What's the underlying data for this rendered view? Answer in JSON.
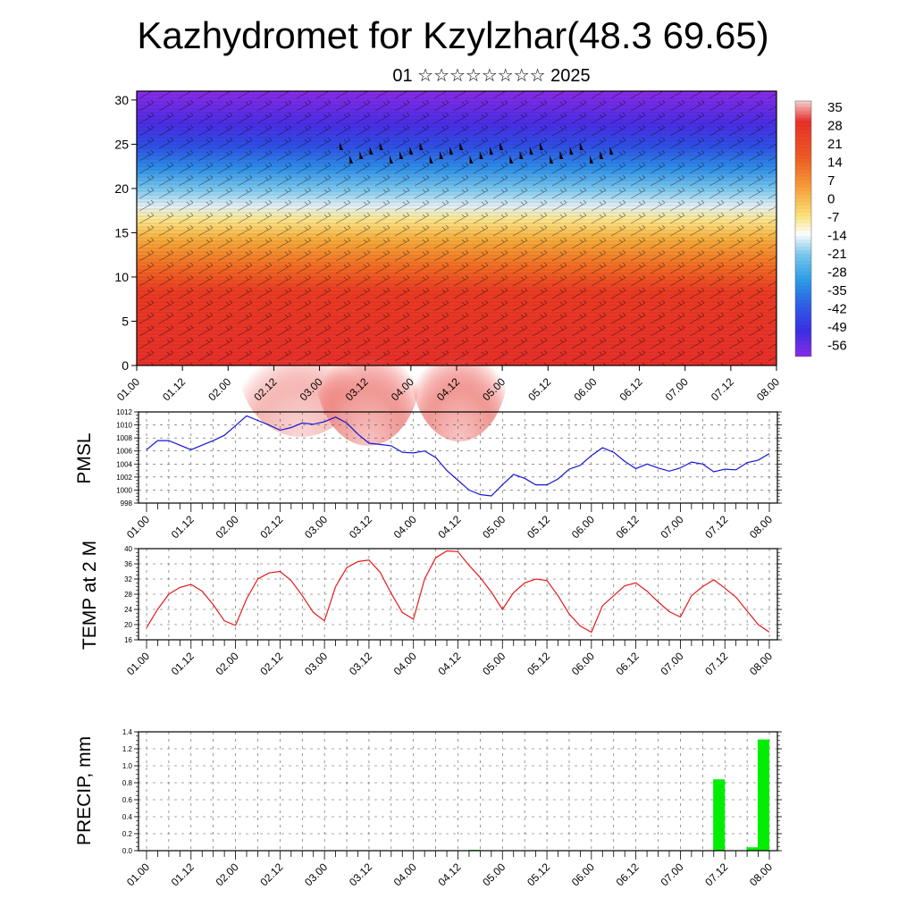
{
  "header": {
    "title": "Kazhydromet for Kzylzhar(48.3 69.65)",
    "subtitle": "01 ☆☆☆☆☆☆☆☆ 2025"
  },
  "chart_data": [
    {
      "type": "heatmap",
      "panel": "cross-section",
      "ylim": [
        0,
        31
      ],
      "yticks": [
        0,
        5,
        10,
        15,
        20,
        25,
        30
      ],
      "xtick_labels": [
        "01.00",
        "01.12",
        "02.00",
        "02.12",
        "03.00",
        "03.12",
        "04.00",
        "04.12",
        "05.00",
        "05.12",
        "06.00",
        "06.12",
        "07.00",
        "07.12",
        "08.00"
      ],
      "colorbar_labels": [
        "35",
        "28",
        "21",
        "14",
        "7",
        "0",
        "-7",
        "-14",
        "-21",
        "-28",
        "-35",
        "-42",
        "-49",
        "-56"
      ],
      "colorbar_colors": [
        "#f5d0d0",
        "#e8302a",
        "#f06a24",
        "#f7b040",
        "#fde37a",
        "#ffffff",
        "#79c9ef",
        "#2c9de8",
        "#2f5ee6",
        "#3a2fe4",
        "#8a2be8"
      ],
      "overlay": "wind barbs",
      "grid": false
    },
    {
      "type": "line",
      "panel": "pmsl",
      "ylabel": "PMSL",
      "ylim": [
        998,
        1012
      ],
      "yticks": [
        998,
        1000,
        1002,
        1004,
        1006,
        1008,
        1010,
        1012
      ],
      "xtick_labels": [
        "01.00",
        "01.12",
        "02.00",
        "02.12",
        "03.00",
        "03.12",
        "04.00",
        "04.12",
        "05.00",
        "05.12",
        "06.00",
        "06.12",
        "07.00",
        "07.12",
        "08.00"
      ],
      "x_hours": [
        0,
        3,
        6,
        9,
        12,
        15,
        18,
        21,
        24,
        27,
        30,
        33,
        36,
        39,
        42,
        45,
        48,
        51,
        54,
        57,
        60,
        63,
        66,
        69,
        72,
        75,
        78,
        81,
        84,
        87,
        90,
        93,
        96,
        99,
        102,
        105,
        108,
        111,
        114,
        117,
        120,
        123,
        126,
        129,
        132,
        135,
        138,
        141,
        144,
        147,
        150,
        153,
        156,
        159,
        162,
        165,
        168
      ],
      "series": [
        {
          "color": "#1515d6",
          "values": [
            1006.2,
            1007.6,
            1007.6,
            1006.9,
            1006.2,
            1006.9,
            1007.6,
            1008.4,
            1009.9,
            1011.4,
            1010.7,
            1010.0,
            1009.2,
            1009.6,
            1010.3,
            1010.1,
            1010.5,
            1011.2,
            1010.3,
            1008.6,
            1007.2,
            1007.0,
            1006.8,
            1005.8,
            1005.7,
            1006.0,
            1005.0,
            1003.0,
            1001.5,
            1000.0,
            999.3,
            999.1,
            1000.8,
            1002.4,
            1001.8,
            1000.8,
            1000.8,
            1001.7,
            1003.2,
            1003.8,
            1005.3,
            1006.5,
            1005.8,
            1004.4,
            1003.3,
            1004.0,
            1003.4,
            1002.9,
            1003.4,
            1004.3,
            1004.0,
            1002.8,
            1003.2,
            1003.1,
            1004.2,
            1004.6,
            1005.6
          ]
        }
      ],
      "grid": true
    },
    {
      "type": "line",
      "panel": "temp2m",
      "ylabel": "TEMP at 2 M",
      "ylim": [
        16,
        40
      ],
      "yticks": [
        16,
        20,
        24,
        28,
        32,
        36,
        40
      ],
      "xtick_labels": [
        "01.00",
        "01.12",
        "02.00",
        "02.12",
        "03.00",
        "03.12",
        "04.00",
        "04.12",
        "05.00",
        "05.12",
        "06.00",
        "06.12",
        "07.00",
        "07.12",
        "08.00"
      ],
      "x_hours": [
        0,
        3,
        6,
        9,
        12,
        15,
        18,
        21,
        24,
        27,
        30,
        33,
        36,
        39,
        42,
        45,
        48,
        51,
        54,
        57,
        60,
        63,
        66,
        69,
        72,
        75,
        78,
        81,
        84,
        87,
        90,
        93,
        96,
        99,
        102,
        105,
        108,
        111,
        114,
        117,
        120,
        123,
        126,
        129,
        132,
        135,
        138,
        141,
        144,
        147,
        150,
        153,
        156,
        159,
        162,
        165,
        168
      ],
      "series": [
        {
          "color": "#e41a1a",
          "values": [
            19.2,
            24.0,
            28.0,
            29.8,
            30.6,
            28.8,
            25.2,
            21.0,
            19.8,
            26.8,
            32.0,
            33.6,
            34.0,
            31.6,
            27.6,
            23.2,
            21.0,
            30.0,
            35.0,
            36.6,
            37.0,
            33.8,
            28.2,
            23.2,
            21.4,
            32.0,
            37.6,
            39.4,
            39.2,
            35.6,
            32.4,
            28.6,
            24.0,
            28.4,
            31.0,
            32.0,
            31.6,
            27.6,
            22.8,
            19.6,
            18.0,
            25.0,
            27.6,
            30.2,
            31.0,
            28.8,
            26.0,
            23.4,
            22.0,
            27.6,
            30.0,
            31.8,
            29.6,
            27.2,
            23.6,
            20.0,
            18.0
          ]
        }
      ],
      "grid": true
    },
    {
      "type": "bar",
      "panel": "precip",
      "ylabel": "PRECIP, mm",
      "ylim": [
        0,
        1.4
      ],
      "yticks": [
        "0.0",
        "0.2",
        "0.4",
        "0.6",
        "0.8",
        "1.0",
        "1.2",
        "1.4"
      ],
      "xtick_labels": [
        "01.00",
        "01.12",
        "02.00",
        "02.12",
        "03.00",
        "03.12",
        "04.00",
        "04.12",
        "05.00",
        "05.12",
        "06.00",
        "06.12",
        "07.00",
        "07.12",
        "08.00"
      ],
      "bars": [
        {
          "x_hour": 90,
          "value": 0.01
        },
        {
          "x_hour": 156,
          "value": 0.84
        },
        {
          "x_hour": 165,
          "value": 0.04
        },
        {
          "x_hour": 168,
          "value": 1.31
        }
      ],
      "bar_color": "#00ee00",
      "grid": true
    }
  ]
}
